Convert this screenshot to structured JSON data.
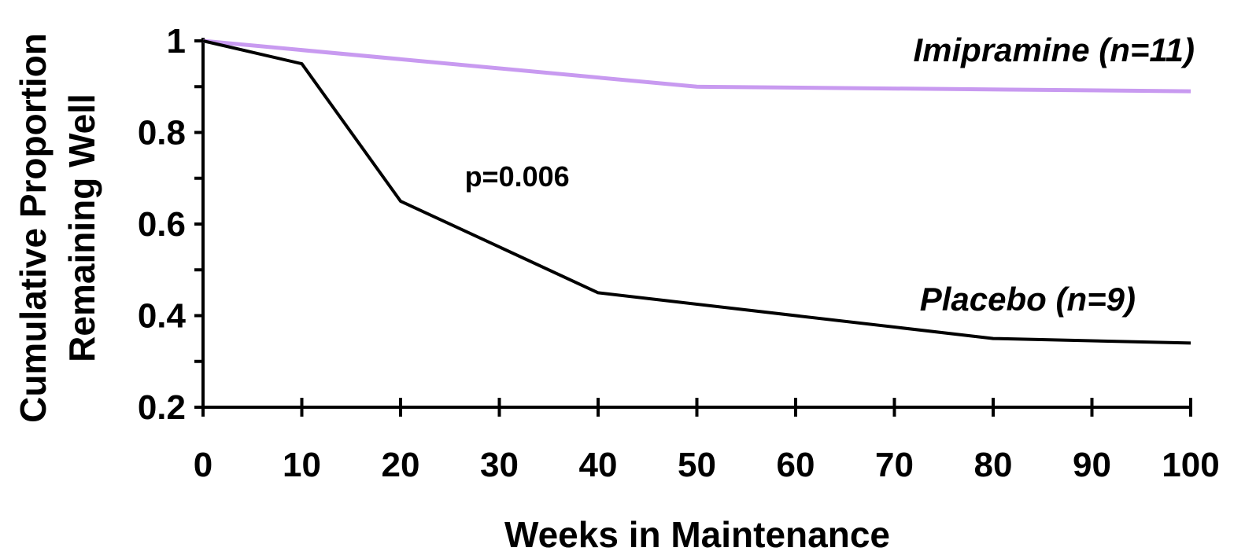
{
  "chart_data": {
    "type": "line",
    "xlabel": "Weeks in Maintenance",
    "ylabel_lines": [
      "Cumulative Proportion",
      "Remaining Well"
    ],
    "xlim": [
      0,
      100
    ],
    "ylim": [
      0.2,
      1
    ],
    "x_ticks": [
      0,
      10,
      20,
      30,
      40,
      50,
      60,
      70,
      80,
      90,
      100
    ],
    "x_tick_labels": [
      "0",
      "10",
      "20",
      "30",
      "40",
      "50",
      "60",
      "70",
      "80",
      "90",
      "100"
    ],
    "y_ticks": [
      0.2,
      0.3,
      0.4,
      0.5,
      0.6,
      0.7,
      0.8,
      0.9,
      1
    ],
    "y_tick_labels": [
      {
        "value": 0.2,
        "label": "0.2"
      },
      {
        "value": 0.4,
        "label": "0.4"
      },
      {
        "value": 0.6,
        "label": "0.6"
      },
      {
        "value": 0.8,
        "label": "0.8"
      },
      {
        "value": 1,
        "label": "1"
      }
    ],
    "grid": false,
    "series": [
      {
        "name": "Imipramine (n=11)",
        "color": "#c89af0",
        "x": [
          0,
          50,
          100
        ],
        "y": [
          1.0,
          0.9,
          0.89
        ]
      },
      {
        "name": "Placebo (n=9)",
        "color": "#000000",
        "x": [
          0,
          10,
          20,
          40,
          80,
          100
        ],
        "y": [
          1.0,
          0.95,
          0.65,
          0.45,
          0.35,
          0.34
        ]
      }
    ],
    "annotations": [
      {
        "text": "p=0.006",
        "x": 26.5,
        "y": 0.705
      }
    ]
  }
}
